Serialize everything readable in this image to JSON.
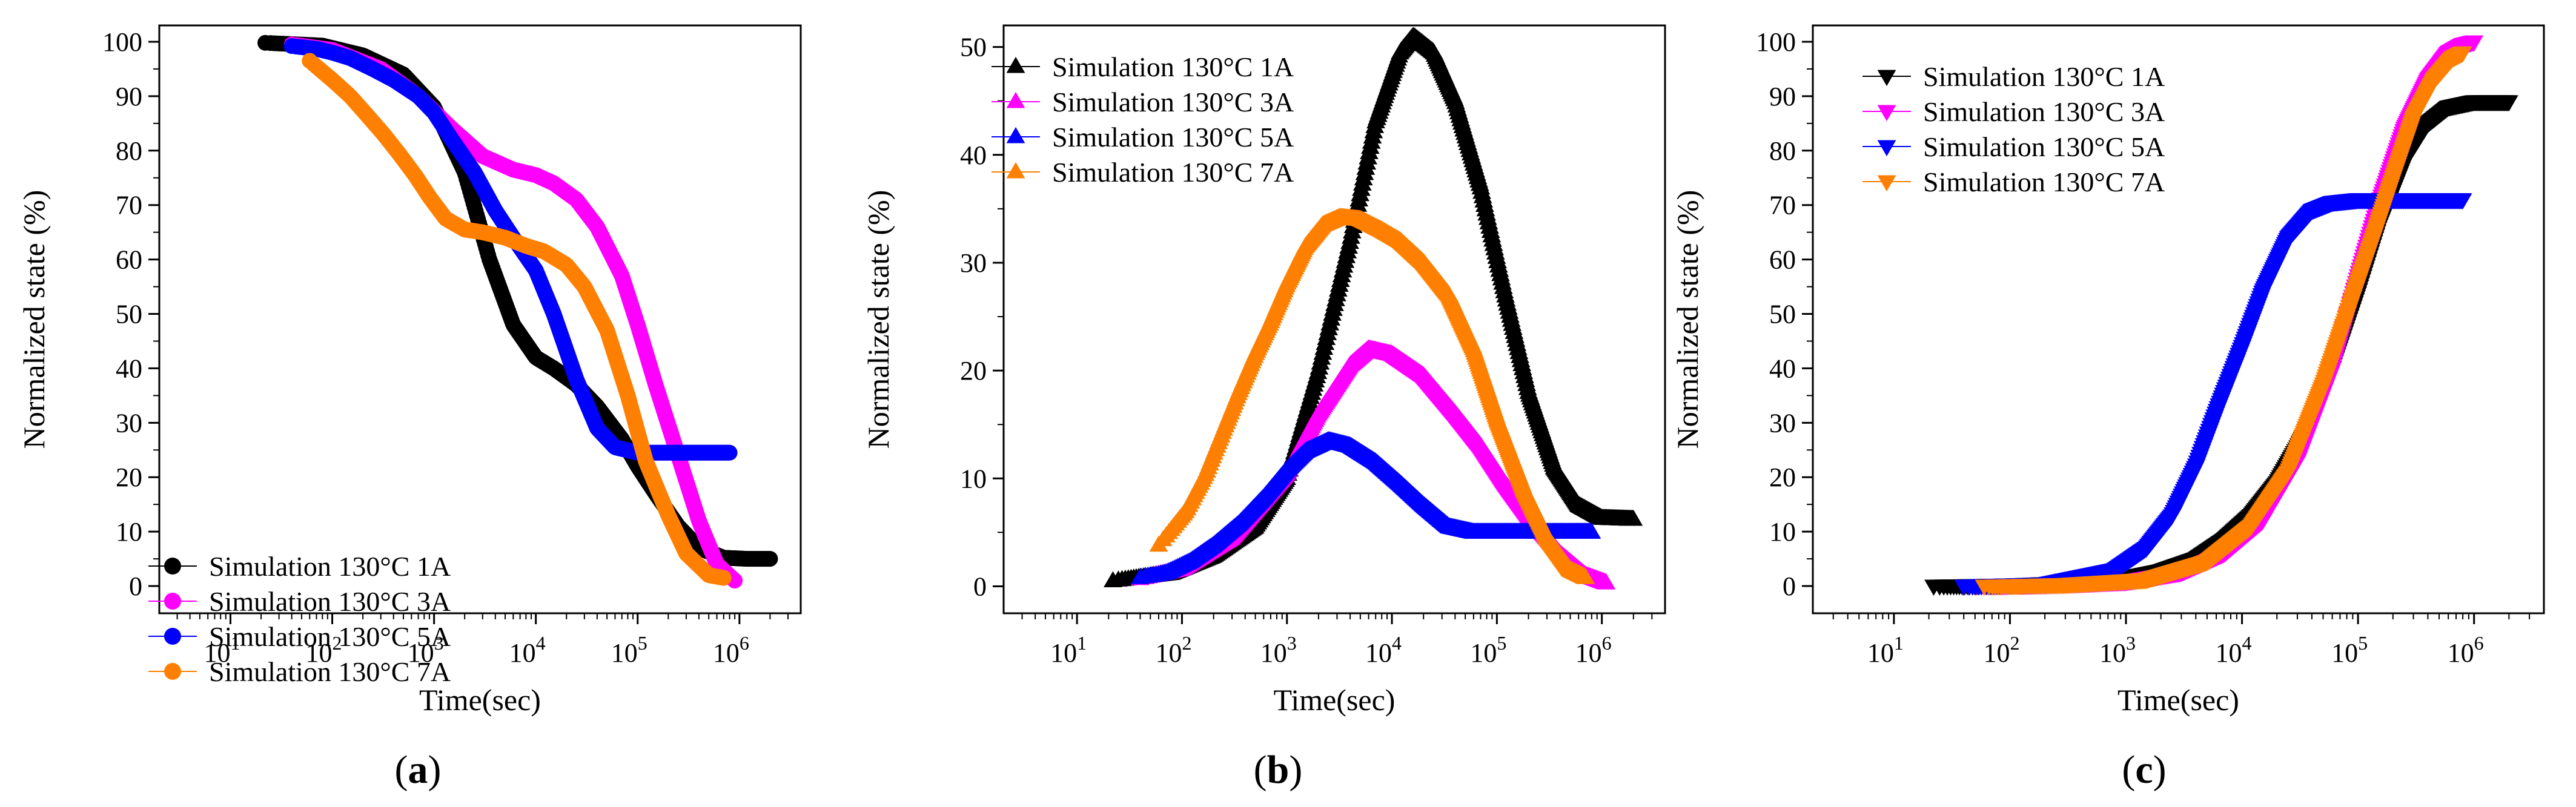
{
  "figure": {
    "chart_data": [
      {
        "type": "scatter",
        "panel_label": "(a)",
        "panel_letter": "a",
        "xlabel": "Time(sec)",
        "ylabel": "Normalized state (%)",
        "xscale": "log",
        "xlim": [
          2.0,
          4000000
        ],
        "ylim": [
          -5,
          103
        ],
        "x_ticks": [
          10,
          100,
          1000,
          10000,
          100000,
          1000000
        ],
        "x_tick_labels": [
          {
            "base": "10",
            "exp": "1"
          },
          {
            "base": "10",
            "exp": "2"
          },
          {
            "base": "10",
            "exp": "3"
          },
          {
            "base": "10",
            "exp": "4"
          },
          {
            "base": "10",
            "exp": "5"
          },
          {
            "base": "10",
            "exp": "6"
          }
        ],
        "y_ticks": [
          0,
          10,
          20,
          30,
          40,
          50,
          60,
          70,
          80,
          90,
          100
        ],
        "y_tick_labels": [
          "0",
          "10",
          "20",
          "30",
          "40",
          "50",
          "60",
          "70",
          "80",
          "90",
          "100"
        ],
        "marker": "circle",
        "legend_position": "bottom-left",
        "series": [
          {
            "name": "Simulation 130°C 1A",
            "color": "#000000",
            "x": [
              22,
              80,
              200,
              500,
              1000,
              2000,
              3500,
              6000,
              10000,
              15000,
              25000,
              40000,
              70000,
              100000,
              150000,
              250000,
              400000,
              700000,
              1200000,
              2000000
            ],
            "y": [
              99.8,
              99.3,
              97.5,
              94,
              88,
              76,
              60,
              48,
              42,
              40,
              37,
              33,
              27,
              22,
              17,
              11,
              7,
              5.2,
              5,
              5
            ]
          },
          {
            "name": "Simulation 130°C 3A",
            "color": "#ff00ff",
            "x": [
              40,
              100,
              300,
              700,
              1500,
              3000,
              6000,
              10000,
              15000,
              25000,
              40000,
              70000,
              100000,
              150000,
              250000,
              400000,
              600000,
              900000
            ],
            "y": [
              99.5,
              98.5,
              95,
              90,
              84,
              79,
              76.5,
              75.5,
              74,
              71,
              66,
              57,
              48,
              37,
              24,
              12,
              4,
              1
            ]
          },
          {
            "name": "Simulation 130°C 5A",
            "color": "#0000ff",
            "x": [
              40,
              70,
              100,
              150,
              250,
              400,
              700,
              1000,
              1500,
              2500,
              4000,
              6000,
              10000,
              15000,
              25000,
              40000,
              60000,
              100000,
              200000,
              500000,
              800000
            ],
            "y": [
              99.2,
              98.7,
              98,
              97,
              95,
              93,
              90,
              87,
              82,
              76,
              69,
              64,
              58,
              50,
              38,
              29,
              25.5,
              24.5,
              24.5,
              24.5,
              24.5
            ]
          },
          {
            "name": "Simulation 130°C 7A",
            "color": "#ff8000",
            "x": [
              60,
              100,
              150,
              220,
              320,
              450,
              650,
              900,
              1300,
              2000,
              3000,
              5000,
              8000,
              12000,
              20000,
              30000,
              50000,
              80000,
              120000,
              200000,
              300000,
              500000,
              700000
            ],
            "y": [
              96.5,
              93,
              90,
              86.5,
              83,
              79.5,
              75.5,
              71.5,
              67.5,
              65.5,
              65,
              64,
              62.5,
              61.5,
              59,
              55,
              47,
              35,
              23,
              13,
              6,
              2,
              1.5
            ]
          }
        ]
      },
      {
        "type": "scatter",
        "panel_label": "(b)",
        "panel_letter": "b",
        "xlabel": "Time(sec)",
        "ylabel": "Normalized state (%)",
        "xscale": "log",
        "xlim": [
          2.0,
          4000000
        ],
        "ylim": [
          -2.5,
          52
        ],
        "x_ticks": [
          10,
          100,
          1000,
          10000,
          100000,
          1000000
        ],
        "x_tick_labels": [
          {
            "base": "10",
            "exp": "1"
          },
          {
            "base": "10",
            "exp": "2"
          },
          {
            "base": "10",
            "exp": "3"
          },
          {
            "base": "10",
            "exp": "4"
          },
          {
            "base": "10",
            "exp": "5"
          },
          {
            "base": "10",
            "exp": "6"
          }
        ],
        "y_ticks": [
          0,
          10,
          20,
          30,
          40,
          50
        ],
        "y_tick_labels": [
          "0",
          "10",
          "20",
          "30",
          "40",
          "50"
        ],
        "marker": "triangle-up",
        "legend_position": "top-left",
        "series": [
          {
            "name": "Simulation 130°C 1A",
            "color": "#000000",
            "x": [
              22,
              80,
              200,
              500,
              1000,
              2000,
              4000,
              7000,
              12000,
              16000,
              25000,
              40000,
              70000,
              120000,
              200000,
              350000,
              600000,
              1000000,
              2000000
            ],
            "y": [
              0.5,
              1.2,
              2.8,
              5.5,
              10,
              20,
              32,
              43,
              49.5,
              51,
              49.5,
              45,
              37,
              27,
              18,
              11,
              7.5,
              6.3,
              6.2
            ]
          },
          {
            "name": "Simulation 130°C 3A",
            "color": "#ff00ff",
            "x": [
              40,
              100,
              300,
              1000,
              2000,
              4000,
              6000,
              10000,
              20000,
              40000,
              70000,
              120000,
              200000,
              400000,
              700000,
              1100000
            ],
            "y": [
              0.7,
              1.6,
              4.5,
              10.5,
              16,
              20.5,
              22,
              21.5,
              19.5,
              16,
              13,
              9.5,
              6.5,
              3,
              1,
              0.3
            ]
          },
          {
            "name": "Simulation 130°C 5A",
            "color": "#0000ff",
            "x": [
              40,
              70,
              120,
              200,
              350,
              600,
              1000,
              1500,
              2500,
              4000,
              7000,
              12000,
              20000,
              35000,
              60000,
              100000,
              200000,
              400000,
              800000
            ],
            "y": [
              0.8,
              1.2,
              2.3,
              3.8,
              5.8,
              8.2,
              10.8,
              12.5,
              13.5,
              13,
              11.5,
              9.5,
              7.5,
              5.5,
              5,
              5,
              5,
              5,
              5
            ]
          },
          {
            "name": "Simulation 130°C 7A",
            "color": "#ff8000",
            "x": [
              60,
              110,
              170,
              250,
              350,
              500,
              700,
              1000,
              1500,
              2200,
              3200,
              5000,
              8000,
              12000,
              20000,
              35000,
              60000,
              100000,
              180000,
              300000,
              500000,
              700000
            ],
            "y": [
              3.8,
              7,
              10.5,
              14.5,
              18,
              21.5,
              24.5,
              28,
              31.5,
              33.5,
              34.2,
              34,
              33,
              32,
              30,
              27,
              22,
              15.5,
              9,
              4.5,
              1.5,
              0.8
            ]
          }
        ]
      },
      {
        "type": "scatter",
        "panel_label": "(c)",
        "panel_letter": "c",
        "xlabel": "Time(sec)",
        "ylabel": "Normalized state (%)",
        "xscale": "log",
        "xlim": [
          2.0,
          4000000
        ],
        "ylim": [
          -5,
          103
        ],
        "x_ticks": [
          10,
          100,
          1000,
          10000,
          100000,
          1000000
        ],
        "x_tick_labels": [
          {
            "base": "10",
            "exp": "1"
          },
          {
            "base": "10",
            "exp": "2"
          },
          {
            "base": "10",
            "exp": "3"
          },
          {
            "base": "10",
            "exp": "4"
          },
          {
            "base": "10",
            "exp": "5"
          },
          {
            "base": "10",
            "exp": "6"
          }
        ],
        "y_ticks": [
          0,
          10,
          20,
          30,
          40,
          50,
          60,
          70,
          80,
          90,
          100
        ],
        "y_tick_labels": [
          "0",
          "10",
          "20",
          "30",
          "40",
          "50",
          "60",
          "70",
          "80",
          "90",
          "100"
        ],
        "marker": "triangle-down",
        "legend_position": "top-left",
        "series": [
          {
            "name": "Simulation 130°C 1A",
            "color": "#000000",
            "x": [
              22,
              100,
              500,
              1000,
              2000,
              4000,
              7000,
              12000,
              20000,
              35000,
              60000,
              100000,
              150000,
              250000,
              400000,
              600000,
              1000000,
              2000000
            ],
            "y": [
              0,
              0.2,
              0.8,
              1.5,
              2.8,
              5,
              8.5,
              13,
              19,
              28,
              40,
              54,
              66,
              78,
              85,
              88,
              89,
              89
            ]
          },
          {
            "name": "Simulation 130°C 3A",
            "color": "#ff00ff",
            "x": [
              40,
              200,
              1000,
              3000,
              7000,
              15000,
              30000,
              60000,
              100000,
              150000,
              250000,
              400000,
              600000,
              800000,
              1000000
            ],
            "y": [
              0,
              0.2,
              0.8,
              2.5,
              6,
              12,
              23,
              40,
              57,
              70,
              84,
              93,
              98,
              99.5,
              100
            ]
          },
          {
            "name": "Simulation 130°C 5A",
            "color": "#0000ff",
            "x": [
              40,
              200,
              800,
              1500,
              2500,
              4000,
              6000,
              10000,
              15000,
              25000,
              40000,
              60000,
              100000,
              200000,
              400000,
              800000
            ],
            "y": [
              0,
              0.4,
              3,
              7,
              13,
              22,
              32,
              44,
              54,
              64,
              69,
              70.5,
              71,
              71,
              71,
              71
            ]
          },
          {
            "name": "Simulation 130°C 7A",
            "color": "#ff8000",
            "x": [
              60,
              300,
              1500,
              5000,
              12000,
              25000,
              50000,
              90000,
              140000,
              200000,
              300000,
              450000,
              650000,
              800000
            ],
            "y": [
              0,
              0.3,
              1.2,
              4.5,
              11,
              21,
              37,
              53,
              65,
              75,
              86,
              93,
              97,
              98
            ]
          }
        ]
      }
    ]
  }
}
